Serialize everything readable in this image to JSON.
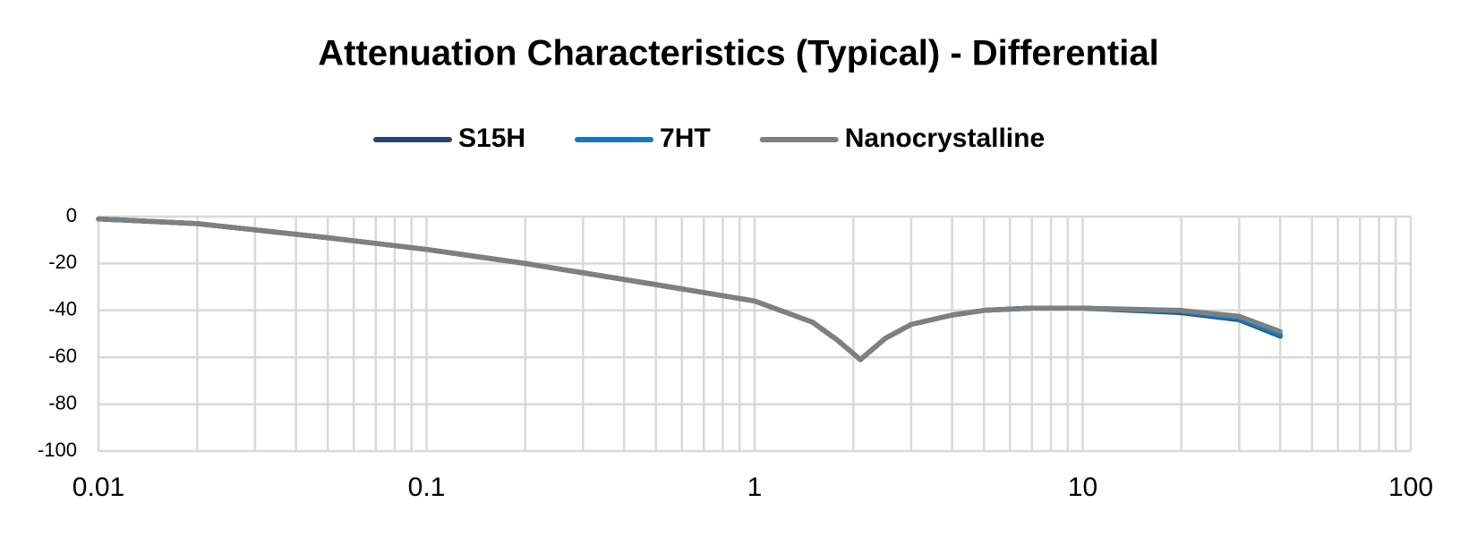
{
  "chart_data": {
    "type": "line",
    "title": "Attenuation Characteristics (Typical) - Differential",
    "x": [
      0.01,
      0.02,
      0.05,
      0.1,
      0.2,
      0.5,
      1,
      1.5,
      1.8,
      2.1,
      2.5,
      3,
      4,
      5,
      7,
      10,
      20,
      30,
      40
    ],
    "series": [
      {
        "name": "S15H",
        "color": "#264478",
        "values": [
          -1,
          -3,
          -9,
          -14,
          -20,
          -29,
          -36,
          -45,
          -53,
          -61,
          -52,
          -46,
          -42,
          -40,
          -39,
          -39,
          -41,
          -44,
          -51
        ]
      },
      {
        "name": "7HT",
        "color": "#0e7cc1",
        "values": [
          -1,
          -3,
          -9,
          -14,
          -20,
          -29,
          -36,
          -45,
          -53,
          -61,
          -52,
          -46,
          -42,
          -40,
          -39,
          -39,
          -40.5,
          -43.5,
          -50.5
        ]
      },
      {
        "name": "Nanocrystalline",
        "color": "#7f7f7f",
        "values": [
          -1,
          -3,
          -9,
          -14,
          -20,
          -29,
          -36,
          -45,
          -53,
          -61,
          -52,
          -46,
          -42,
          -40,
          -39,
          -39,
          -40,
          -42.5,
          -49
        ]
      }
    ],
    "xlim": [
      0.01,
      100
    ],
    "xticks": [
      0.01,
      0.1,
      1,
      10,
      100
    ],
    "xscale": "log",
    "ylim": [
      -100,
      0
    ],
    "yticks": [
      0,
      -20,
      -40,
      -60,
      -80,
      -100
    ],
    "grid": true,
    "minor_grid": true,
    "legend": "top"
  }
}
